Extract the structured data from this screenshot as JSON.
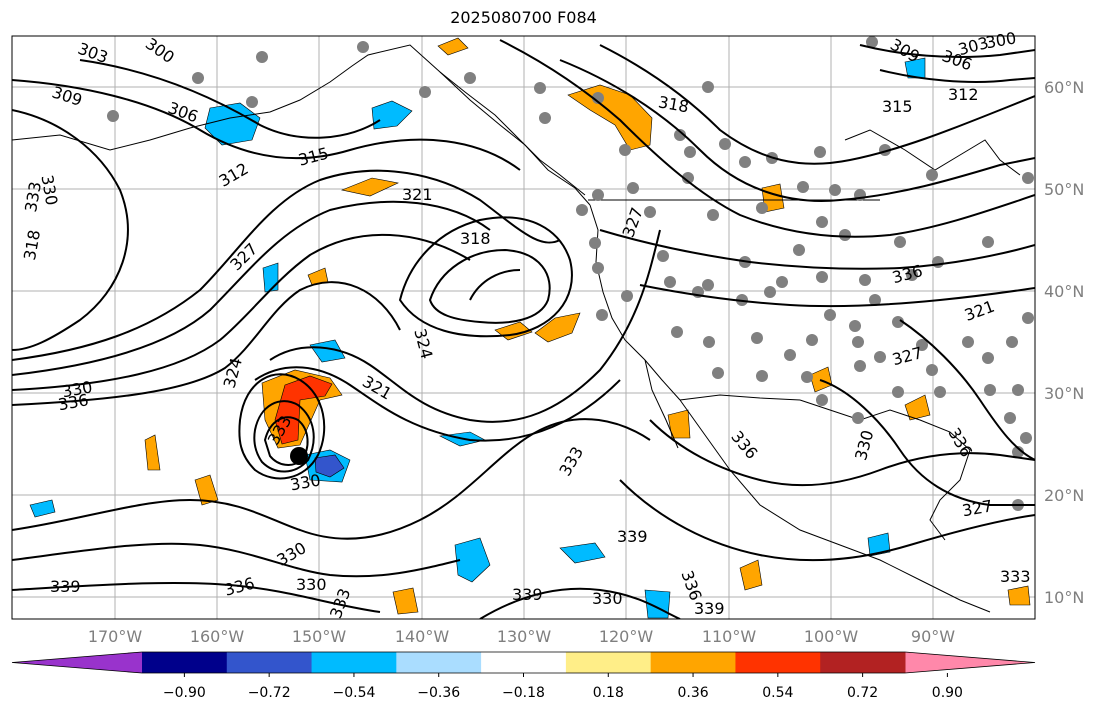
{
  "title": "2025080700 F084",
  "lat_labels": [
    "60°N",
    "50°N",
    "40°N",
    "30°N",
    "20°N",
    "10°N"
  ],
  "lon_labels": [
    "170°W",
    "160°W",
    "150°W",
    "140°W",
    "130°W",
    "120°W",
    "110°W",
    "100°W",
    "90°W"
  ],
  "colorbar": {
    "tick_labels": [
      "−0.90",
      "−0.72",
      "−0.54",
      "−0.36",
      "−0.18",
      "0.18",
      "0.36",
      "0.54",
      "0.72",
      "0.90"
    ],
    "colors": [
      "#9933cc",
      "#00008b",
      "#3355cc",
      "#00bbff",
      "#aaddff",
      "#ffffff",
      "#ffee88",
      "#ffa500",
      "#ff3300",
      "#b22222",
      "#ff88aa"
    ]
  },
  "contour_labels": [
    "303",
    "300",
    "309",
    "306",
    "318",
    "330",
    "333",
    "312",
    "315",
    "321",
    "327",
    "324",
    "318",
    "324",
    "321",
    "330",
    "333",
    "336",
    "330",
    "339",
    "336",
    "330",
    "333",
    "330",
    "339",
    "333",
    "339",
    "336",
    "330",
    "339",
    "327",
    "318",
    "309",
    "306",
    "303",
    "300",
    "315",
    "312",
    "336",
    "321",
    "327",
    "330",
    "336",
    "327",
    "333",
    "336"
  ]
}
